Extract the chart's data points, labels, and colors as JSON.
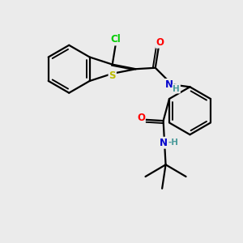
{
  "bg_color": "#ebebeb",
  "atom_colors": {
    "C": "#000000",
    "N": "#0000cc",
    "O": "#ff0000",
    "S": "#bbbb00",
    "Cl": "#00cc00",
    "H": "#4a9a9a"
  },
  "bond_color": "#000000",
  "bond_width": 1.6,
  "figsize": [
    3.0,
    3.0
  ],
  "dpi": 100
}
